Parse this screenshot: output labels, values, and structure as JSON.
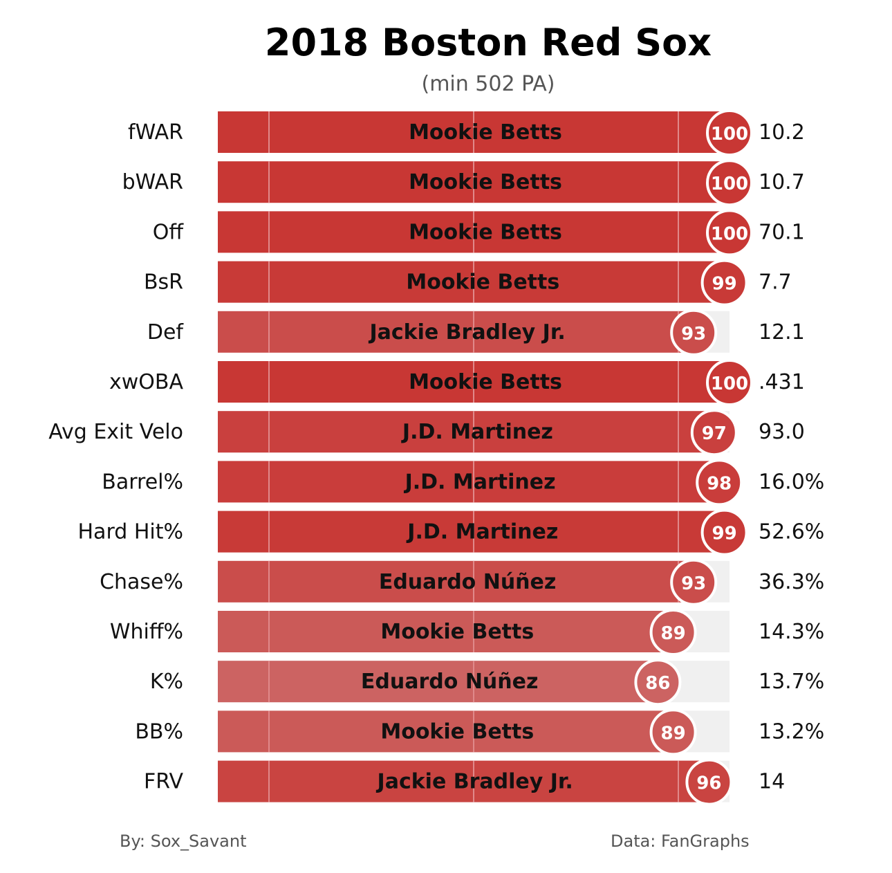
{
  "chart_data": {
    "type": "bar",
    "orientation": "horizontal",
    "title": "2018 Boston Red Sox",
    "subtitle": "(min 502 PA)",
    "xlim": [
      0,
      100
    ],
    "gridlines_at": [
      10,
      50,
      90
    ],
    "rows": [
      {
        "metric": "fWAR",
        "player": "Mookie Betts",
        "percentile": 100,
        "value": "10.2"
      },
      {
        "metric": "bWAR",
        "player": "Mookie Betts",
        "percentile": 100,
        "value": "10.7"
      },
      {
        "metric": "Off",
        "player": "Mookie Betts",
        "percentile": 100,
        "value": "70.1"
      },
      {
        "metric": "BsR",
        "player": "Mookie Betts",
        "percentile": 99,
        "value": "7.7"
      },
      {
        "metric": "Def",
        "player": "Jackie Bradley Jr.",
        "percentile": 93,
        "value": "12.1"
      },
      {
        "metric": "xwOBA",
        "player": "Mookie Betts",
        "percentile": 100,
        "value": ".431"
      },
      {
        "metric": "Avg Exit Velo",
        "player": "J.D. Martinez",
        "percentile": 97,
        "value": "93.0"
      },
      {
        "metric": "Barrel%",
        "player": "J.D. Martinez",
        "percentile": 98,
        "value": "16.0%"
      },
      {
        "metric": "Hard Hit%",
        "player": "J.D. Martinez",
        "percentile": 99,
        "value": "52.6%"
      },
      {
        "metric": "Chase%",
        "player": "Eduardo Núñez",
        "percentile": 93,
        "value": "36.3%"
      },
      {
        "metric": "Whiff%",
        "player": "Mookie Betts",
        "percentile": 89,
        "value": "14.3%"
      },
      {
        "metric": "K%",
        "player": "Eduardo Núñez",
        "percentile": 86,
        "value": "13.7%"
      },
      {
        "metric": "BB%",
        "player": "Mookie Betts",
        "percentile": 89,
        "value": "13.2%"
      },
      {
        "metric": "FRV",
        "player": "Jackie Bradley Jr.",
        "percentile": 96,
        "value": "14"
      }
    ],
    "colors": {
      "high": "#c83734",
      "low": "#cc6362",
      "track": "#f0f0f0",
      "gridline": "#e0898a"
    }
  },
  "footer": {
    "left": "By: Sox_Savant",
    "right": "Data: FanGraphs"
  }
}
